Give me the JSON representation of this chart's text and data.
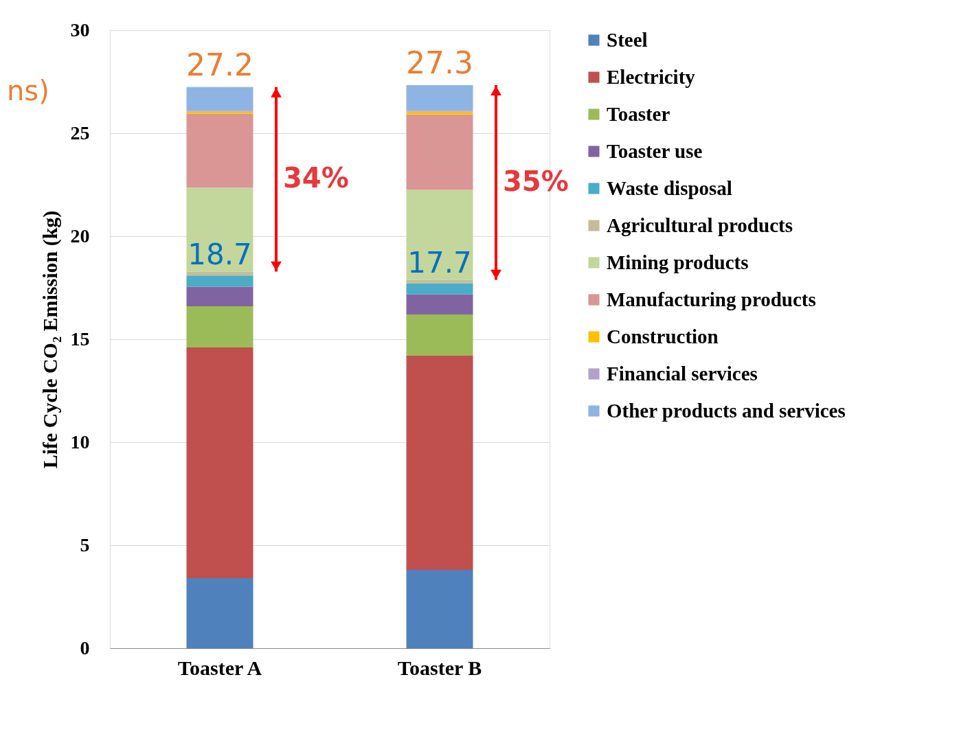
{
  "chart_data": {
    "type": "bar",
    "stacked": true,
    "ylabel": "Life Cycle CO₂ Emission (kg)",
    "categories": [
      "Toaster A",
      "Toaster B"
    ],
    "series": [
      {
        "name": "Steel",
        "color": "#4f81bd",
        "values": [
          3.4,
          3.8
        ]
      },
      {
        "name": "Electricity",
        "color": "#c0504d",
        "values": [
          11.2,
          10.4
        ]
      },
      {
        "name": "Toaster",
        "color": "#9bbb59",
        "values": [
          2.0,
          2.0
        ]
      },
      {
        "name": "Toaster use",
        "color": "#8064a2",
        "values": [
          0.95,
          0.98
        ]
      },
      {
        "name": "Waste disposal",
        "color": "#4bacc6",
        "values": [
          0.54,
          0.54
        ]
      },
      {
        "name": "Agricultural products",
        "color": "#c4bd97",
        "values": [
          0.19,
          0.16
        ]
      },
      {
        "name": "Mining products",
        "color": "#c3d69b",
        "values": [
          4.08,
          4.37
        ]
      },
      {
        "name": "Manufacturing products",
        "color": "#d99694",
        "values": [
          3.58,
          3.67
        ]
      },
      {
        "name": "Construction",
        "color": "#ffc000",
        "values": [
          0.1,
          0.12
        ]
      },
      {
        "name": "Financial services",
        "color": "#b3a2c7",
        "values": [
          0.05,
          0.05
        ]
      },
      {
        "name": "Other products and services",
        "color": "#8eb4e3",
        "values": [
          1.15,
          1.24
        ]
      }
    ],
    "totals": [
      "27.2",
      "27.3"
    ],
    "annotations": [
      "18.7",
      "17.7",
      "34%",
      "35%",
      "ns)"
    ],
    "ylim": [
      0,
      30
    ],
    "yticks": [
      0,
      5,
      10,
      15,
      20,
      25,
      30
    ],
    "grid": "y",
    "legend": "right"
  }
}
